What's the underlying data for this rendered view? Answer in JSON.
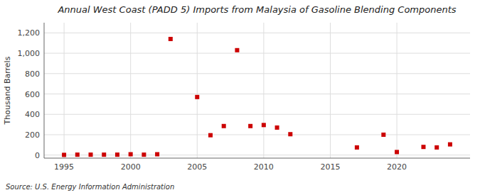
{
  "chart_data": {
    "type": "scatter",
    "title": "Annual West Coast (PADD 5) Imports from Malaysia of Gasoline Blending Components",
    "ylabel": "Thousand Barrels",
    "source": "Source: U.S. Energy Information Administration",
    "x": [
      1995,
      1996,
      1997,
      1998,
      1999,
      2000,
      2001,
      2002,
      2003,
      2005,
      2006,
      2007,
      2008,
      2009,
      2010,
      2011,
      2012,
      2017,
      2019,
      2020,
      2022,
      2023,
      2024
    ],
    "values": [
      2,
      4,
      4,
      4,
      4,
      8,
      4,
      8,
      1140,
      570,
      195,
      285,
      1030,
      285,
      295,
      270,
      205,
      75,
      200,
      30,
      80,
      75,
      105
    ],
    "color": "#cc0000",
    "marker": "square",
    "xlim": [
      1993.5,
      2025.5
    ],
    "ylim": [
      -30,
      1300
    ],
    "xticks": [
      1995,
      2000,
      2005,
      2010,
      2015,
      2020
    ],
    "yticks": [
      0,
      200,
      400,
      600,
      800,
      {
        "value": 1000,
        "label": "1,000"
      },
      {
        "value": 1200,
        "label": "1,200"
      }
    ],
    "grid": true
  }
}
